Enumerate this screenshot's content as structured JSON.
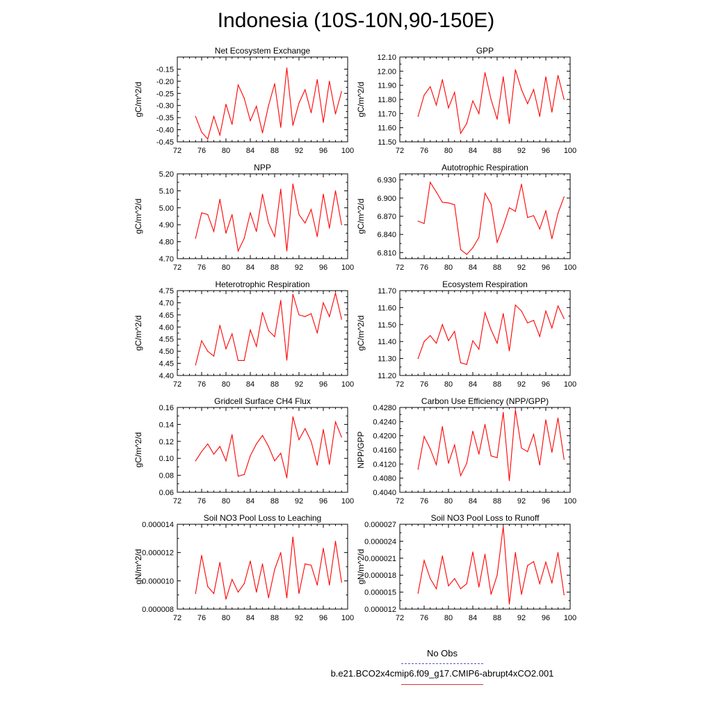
{
  "title": "Indonesia (10S-10N,90-150E)",
  "colors": {
    "series": "#ff0000",
    "obs": "#5555cc",
    "axis": "#000000"
  },
  "legend": {
    "obs_label": "No Obs",
    "run_label": "b.e21.BCO2x4cmip6.f09_g17.CMIP6-abrupt4xCO2.001"
  },
  "chart_data": [
    {
      "type": "line",
      "title": "Net Ecosystem Exchange",
      "ylabel": "gC/m^2/d",
      "xlim": [
        72,
        100
      ],
      "xticks": [
        "72",
        "76",
        "80",
        "84",
        "88",
        "92",
        "96",
        "100"
      ],
      "ylim": [
        -0.45,
        -0.1
      ],
      "yticks": [
        "-0.45",
        "-0.40",
        "-0.35",
        "-0.30",
        "-0.25",
        "-0.20",
        "-0.15"
      ],
      "ytick_values": [
        -0.45,
        -0.4,
        -0.35,
        -0.3,
        -0.25,
        -0.2,
        -0.15
      ],
      "x": [
        75,
        76,
        77,
        78,
        79,
        80,
        81,
        82,
        83,
        84,
        85,
        86,
        87,
        88,
        89,
        90,
        91,
        92,
        93,
        94,
        95,
        96,
        97,
        98,
        99
      ],
      "series": [
        {
          "values": [
            -0.345,
            -0.41,
            -0.438,
            -0.345,
            -0.422,
            -0.295,
            -0.378,
            -0.215,
            -0.27,
            -0.363,
            -0.303,
            -0.413,
            -0.3,
            -0.21,
            -0.39,
            -0.145,
            -0.382,
            -0.29,
            -0.235,
            -0.33,
            -0.193,
            -0.37,
            -0.2,
            -0.335,
            -0.242
          ]
        }
      ]
    },
    {
      "type": "line",
      "title": "GPP",
      "ylabel": "gC/m^2/d",
      "xlim": [
        72,
        100
      ],
      "xticks": [
        "72",
        "76",
        "80",
        "84",
        "88",
        "92",
        "96",
        "100"
      ],
      "ylim": [
        11.5,
        12.1
      ],
      "yticks": [
        "11.50",
        "11.60",
        "11.70",
        "11.80",
        "11.90",
        "12.00",
        "12.10"
      ],
      "ytick_values": [
        11.5,
        11.6,
        11.7,
        11.8,
        11.9,
        12.0,
        12.1
      ],
      "x": [
        75,
        76,
        77,
        78,
        79,
        80,
        81,
        82,
        83,
        84,
        85,
        86,
        87,
        88,
        89,
        90,
        91,
        92,
        93,
        94,
        95,
        96,
        97,
        98,
        99
      ],
      "series": [
        {
          "values": [
            11.68,
            11.83,
            11.89,
            11.76,
            11.94,
            11.74,
            11.85,
            11.56,
            11.63,
            11.79,
            11.7,
            11.99,
            11.8,
            11.66,
            11.96,
            11.63,
            12.01,
            11.87,
            11.77,
            11.87,
            11.68,
            11.96,
            11.71,
            11.97,
            11.8
          ]
        }
      ]
    },
    {
      "type": "line",
      "title": "NPP",
      "ylabel": "gC/m^2/d",
      "xlim": [
        72,
        100
      ],
      "xticks": [
        "72",
        "76",
        "80",
        "84",
        "88",
        "92",
        "96",
        "100"
      ],
      "ylim": [
        4.7,
        5.2
      ],
      "yticks": [
        "4.70",
        "4.80",
        "4.90",
        "5.00",
        "5.10",
        "5.20"
      ],
      "ytick_values": [
        4.7,
        4.8,
        4.9,
        5.0,
        5.1,
        5.2
      ],
      "x": [
        75,
        76,
        77,
        78,
        79,
        80,
        81,
        82,
        83,
        84,
        85,
        86,
        87,
        88,
        89,
        90,
        91,
        92,
        93,
        94,
        95,
        96,
        97,
        98,
        99
      ],
      "series": [
        {
          "values": [
            4.82,
            4.97,
            4.96,
            4.86,
            5.05,
            4.85,
            4.96,
            4.745,
            4.82,
            4.97,
            4.86,
            5.08,
            4.91,
            4.83,
            5.11,
            4.745,
            5.14,
            4.96,
            4.91,
            4.99,
            4.83,
            5.08,
            4.88,
            5.1,
            4.9
          ]
        }
      ]
    },
    {
      "type": "line",
      "title": "Autotrophic Respiration",
      "ylabel": "gC/m^2/d",
      "xlim": [
        72,
        100
      ],
      "xticks": [
        "72",
        "76",
        "80",
        "84",
        "88",
        "92",
        "96",
        "100"
      ],
      "ylim": [
        6.8,
        6.94
      ],
      "yticks": [
        "6.810",
        "6.840",
        "6.870",
        "6.900",
        "6.930"
      ],
      "ytick_values": [
        6.81,
        6.84,
        6.87,
        6.9,
        6.93
      ],
      "x": [
        75,
        76,
        77,
        78,
        79,
        80,
        81,
        82,
        83,
        84,
        85,
        86,
        87,
        88,
        89,
        90,
        91,
        92,
        93,
        94,
        95,
        96,
        97,
        98,
        99
      ],
      "series": [
        {
          "values": [
            6.862,
            6.858,
            6.926,
            6.91,
            6.893,
            6.892,
            6.889,
            6.815,
            6.807,
            6.818,
            6.835,
            6.908,
            6.89,
            6.827,
            6.853,
            6.884,
            6.878,
            6.923,
            6.868,
            6.871,
            6.849,
            6.879,
            6.833,
            6.875,
            6.902
          ]
        }
      ]
    },
    {
      "type": "line",
      "title": "Heterotrophic Respiration",
      "ylabel": "gC/m^2/d",
      "xlim": [
        72,
        100
      ],
      "xticks": [
        "72",
        "76",
        "80",
        "84",
        "88",
        "92",
        "96",
        "100"
      ],
      "ylim": [
        4.4,
        4.75
      ],
      "yticks": [
        "4.40",
        "4.45",
        "4.50",
        "4.55",
        "4.60",
        "4.65",
        "4.70",
        "4.75"
      ],
      "ytick_values": [
        4.4,
        4.45,
        4.5,
        4.55,
        4.6,
        4.65,
        4.7,
        4.75
      ],
      "x": [
        75,
        76,
        77,
        78,
        79,
        80,
        81,
        82,
        83,
        84,
        85,
        86,
        87,
        88,
        89,
        90,
        91,
        92,
        93,
        94,
        95,
        96,
        97,
        98,
        99
      ],
      "series": [
        {
          "values": [
            4.443,
            4.543,
            4.5,
            4.48,
            4.607,
            4.51,
            4.572,
            4.462,
            4.462,
            4.588,
            4.52,
            4.66,
            4.585,
            4.56,
            4.71,
            4.463,
            4.735,
            4.65,
            4.643,
            4.655,
            4.575,
            4.7,
            4.643,
            4.74,
            4.632
          ]
        }
      ]
    },
    {
      "type": "line",
      "title": "Ecosystem Respiration",
      "ylabel": "gC/m^2/d",
      "xlim": [
        72,
        100
      ],
      "xticks": [
        "72",
        "76",
        "80",
        "84",
        "88",
        "92",
        "96",
        "100"
      ],
      "ylim": [
        11.2,
        11.7
      ],
      "yticks": [
        "11.20",
        "11.30",
        "11.40",
        "11.50",
        "11.60",
        "11.70"
      ],
      "ytick_values": [
        11.2,
        11.3,
        11.4,
        11.5,
        11.6,
        11.7
      ],
      "x": [
        75,
        76,
        77,
        78,
        79,
        80,
        81,
        82,
        83,
        84,
        85,
        86,
        87,
        88,
        89,
        90,
        91,
        92,
        93,
        94,
        95,
        96,
        97,
        98,
        99
      ],
      "series": [
        {
          "values": [
            11.3,
            11.4,
            11.435,
            11.39,
            11.5,
            11.405,
            11.46,
            11.275,
            11.265,
            11.405,
            11.355,
            11.57,
            11.47,
            11.39,
            11.565,
            11.345,
            11.615,
            11.58,
            11.51,
            11.525,
            11.43,
            11.58,
            11.48,
            11.61,
            11.535
          ]
        }
      ]
    },
    {
      "type": "line",
      "title": "Gridcell Surface CH4 Flux",
      "ylabel": "gC/m^2/d",
      "xlim": [
        72,
        100
      ],
      "xticks": [
        "72",
        "76",
        "80",
        "84",
        "88",
        "92",
        "96",
        "100"
      ],
      "ylim": [
        0.06,
        0.16
      ],
      "yticks": [
        "0.06",
        "0.08",
        "0.10",
        "0.12",
        "0.14",
        "0.16"
      ],
      "ytick_values": [
        0.06,
        0.08,
        0.1,
        0.12,
        0.14,
        0.16
      ],
      "x": [
        75,
        76,
        77,
        78,
        79,
        80,
        81,
        82,
        83,
        84,
        85,
        86,
        87,
        88,
        89,
        90,
        91,
        92,
        93,
        94,
        95,
        96,
        97,
        98,
        99
      ],
      "series": [
        {
          "values": [
            0.097,
            0.108,
            0.117,
            0.105,
            0.114,
            0.097,
            0.128,
            0.079,
            0.081,
            0.103,
            0.117,
            0.127,
            0.114,
            0.097,
            0.106,
            0.077,
            0.149,
            0.122,
            0.135,
            0.12,
            0.092,
            0.134,
            0.093,
            0.143,
            0.125
          ]
        }
      ]
    },
    {
      "type": "line",
      "title": "Carbon Use Efficiency (NPP/GPP)",
      "ylabel": "NPP/GPP",
      "xlim": [
        72,
        100
      ],
      "xticks": [
        "72",
        "76",
        "80",
        "84",
        "88",
        "92",
        "96",
        "100"
      ],
      "ylim": [
        0.404,
        0.428
      ],
      "yticks": [
        "0.4040",
        "0.4080",
        "0.4120",
        "0.4160",
        "0.4200",
        "0.4240",
        "0.4280"
      ],
      "ytick_values": [
        0.404,
        0.408,
        0.412,
        0.416,
        0.42,
        0.424,
        0.428
      ],
      "x": [
        75,
        76,
        77,
        78,
        79,
        80,
        81,
        82,
        83,
        84,
        85,
        86,
        87,
        88,
        89,
        90,
        91,
        92,
        93,
        94,
        95,
        96,
        97,
        98,
        99
      ],
      "series": [
        {
          "values": [
            0.4105,
            0.4198,
            0.4163,
            0.4118,
            0.4226,
            0.4122,
            0.4174,
            0.4087,
            0.4122,
            0.4213,
            0.4148,
            0.4232,
            0.4143,
            0.4138,
            0.4266,
            0.4073,
            0.4273,
            0.4165,
            0.4155,
            0.4204,
            0.4117,
            0.4245,
            0.4153,
            0.425,
            0.4133
          ]
        }
      ]
    },
    {
      "type": "line",
      "title": "Soil NO3 Pool Loss to Leaching",
      "ylabel": "gN/m^2/d",
      "xlim": [
        72,
        100
      ],
      "xticks": [
        "72",
        "76",
        "80",
        "84",
        "88",
        "92",
        "96",
        "100"
      ],
      "ylim": [
        8e-06,
        1.4e-05
      ],
      "yticks": [
        "0.000008",
        "0.000010",
        "0.000012",
        "0.000014"
      ],
      "ytick_values": [
        8e-06,
        1e-05,
        1.2e-05,
        1.4e-05
      ],
      "x": [
        75,
        76,
        77,
        78,
        79,
        80,
        81,
        82,
        83,
        84,
        85,
        86,
        87,
        88,
        89,
        90,
        91,
        92,
        93,
        94,
        95,
        96,
        97,
        98,
        99
      ],
      "series": [
        {
          "values": [
            9.1e-06,
            1.18e-05,
            9.6e-06,
            9.1e-06,
            1.13e-05,
            8.7e-06,
            1.01e-05,
            9.2e-06,
            9.8e-06,
            1.14e-05,
            9.2e-06,
            1.12e-05,
            8.8e-06,
            1.08e-05,
            1.2e-05,
            8.8e-06,
            1.31e-05,
            9.1e-06,
            1.12e-05,
            1.11e-05,
            9.7e-06,
            1.23e-05,
            9.7e-06,
            1.28e-05,
            9.9e-06
          ]
        }
      ]
    },
    {
      "type": "line",
      "title": "Soil NO3 Pool Loss to Runoff",
      "ylabel": "gN/m^2/d",
      "xlim": [
        72,
        100
      ],
      "xticks": [
        "72",
        "76",
        "80",
        "84",
        "88",
        "92",
        "96",
        "100"
      ],
      "ylim": [
        1.2e-05,
        2.7e-05
      ],
      "yticks": [
        "0.000012",
        "0.000015",
        "0.000018",
        "0.000021",
        "0.000024",
        "0.000027"
      ],
      "ytick_values": [
        1.2e-05,
        1.5e-05,
        1.8e-05,
        2.1e-05,
        2.4e-05,
        2.7e-05
      ],
      "x": [
        75,
        76,
        77,
        78,
        79,
        80,
        81,
        82,
        83,
        84,
        85,
        86,
        87,
        88,
        89,
        90,
        91,
        92,
        93,
        94,
        95,
        96,
        97,
        98,
        99
      ],
      "series": [
        {
          "values": [
            1.48e-05,
            2.06e-05,
            1.74e-05,
            1.56e-05,
            2.14e-05,
            1.61e-05,
            1.74e-05,
            1.56e-05,
            1.65e-05,
            2.21e-05,
            1.59e-05,
            2.17e-05,
            1.46e-05,
            1.8e-05,
            2.66e-05,
            1.29e-05,
            2.2e-05,
            1.46e-05,
            1.97e-05,
            2.04e-05,
            1.65e-05,
            2.03e-05,
            1.66e-05,
            2.2e-05,
            1.45e-05
          ]
        }
      ]
    }
  ]
}
